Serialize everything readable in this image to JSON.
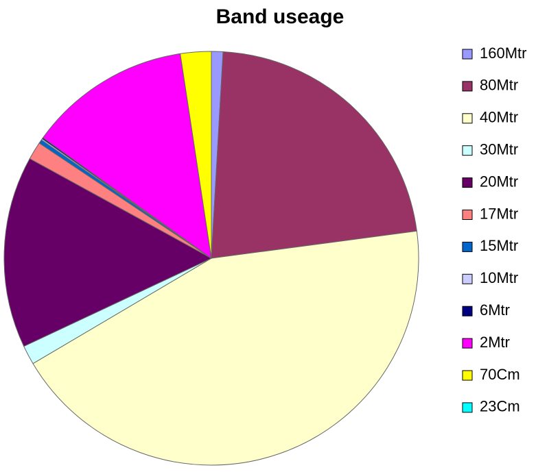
{
  "chart_data": {
    "type": "pie",
    "title": "Band useage",
    "categories": [
      "160Mtr",
      "80Mtr",
      "40Mtr",
      "30Mtr",
      "20Mtr",
      "17Mtr",
      "15Mtr",
      "10Mtr",
      "6Mtr",
      "2Mtr",
      "70Cm",
      "23Cm"
    ],
    "values": [
      0.9,
      22,
      43.6,
      1.5,
      15,
      1.4,
      0.3,
      0.1,
      0.1,
      12.7,
      2.4,
      0
    ],
    "colors": [
      "#9999ff",
      "#993366",
      "#ffffcc",
      "#ccffff",
      "#660066",
      "#ff8080",
      "#0066cc",
      "#ccccff",
      "#000080",
      "#ff00ff",
      "#ffff00",
      "#00ffff"
    ],
    "legend": "right"
  }
}
